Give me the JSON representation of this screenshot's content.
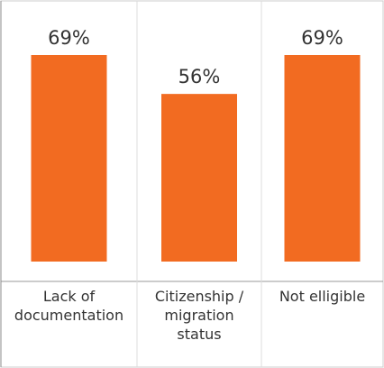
{
  "chart_data": {
    "type": "bar",
    "categories": [
      "Lack of documentation",
      "Citizenship / migration status",
      "Not elligible"
    ],
    "values": [
      69,
      56,
      69
    ],
    "value_labels": [
      "69%",
      "56%",
      "69%"
    ],
    "color": "#f26b21"
  }
}
